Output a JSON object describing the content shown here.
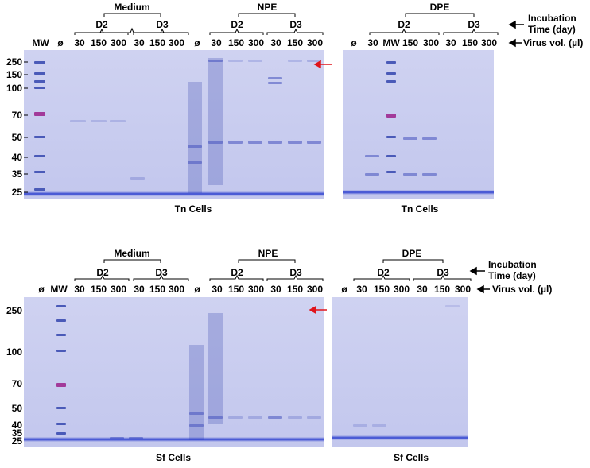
{
  "markers": {
    "mw": "MW",
    "empty": "ø",
    "arrow_color": "#e0141c"
  },
  "top_panel": {
    "tn_left": {
      "groups": {
        "medium": "Medium",
        "npe": "NPE"
      },
      "days": [
        "D2",
        "D3",
        "D2",
        "D3"
      ],
      "lanes": [
        "MW",
        "ø",
        "30",
        "150",
        "300",
        "30",
        "150",
        "300",
        "ø",
        "30",
        "150",
        "300",
        "30",
        "150",
        "300"
      ],
      "mw_ticks": [
        "250",
        "150",
        "100",
        "70",
        "50",
        "40",
        "35",
        "25"
      ],
      "caption": "Tn Cells"
    },
    "tn_right": {
      "group": "DPE",
      "days": [
        "D2",
        "D3"
      ],
      "lanes": [
        "ø",
        "30",
        "MW",
        "150",
        "300",
        "30",
        "150",
        "300"
      ],
      "caption": "Tn Cells"
    },
    "legend": {
      "incubation_line1": "Incubation",
      "incubation_line2": "Time (day)",
      "virus": "Virus vol. (µl)"
    }
  },
  "bottom_panel": {
    "sf_left": {
      "groups": {
        "medium": "Medium",
        "npe": "NPE"
      },
      "days": [
        "D2",
        "D3",
        "D2",
        "D3"
      ],
      "lanes": [
        "ø",
        "MW",
        "30",
        "150",
        "300",
        "30",
        "150",
        "300",
        "ø",
        "30",
        "150",
        "300",
        "30",
        "150",
        "300"
      ],
      "mw_ticks": [
        "250",
        "100",
        "70",
        "50",
        "40",
        "35",
        "25"
      ],
      "caption": "Sf Cells"
    },
    "sf_right": {
      "group": "DPE",
      "days": [
        "D2",
        "D3"
      ],
      "lanes": [
        "ø",
        "30",
        "150",
        "300",
        "30",
        "150",
        "300"
      ],
      "caption": "Sf Cells"
    },
    "legend": {
      "incubation_line1": "Incubation",
      "incubation_line2": "Time (day)",
      "virus": "Virus vol. (µl)"
    }
  }
}
